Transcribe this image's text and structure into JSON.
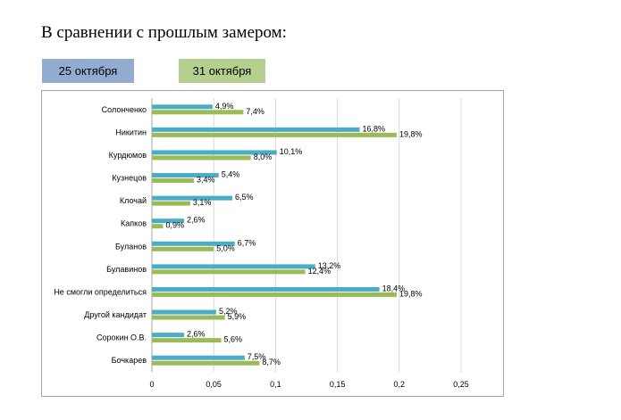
{
  "heading": "В сравнении с прошлым замером:",
  "legend": {
    "first": "25 октября",
    "second": "31 октября"
  },
  "colors": {
    "first": "#4bacc6",
    "second": "#9bbb59",
    "legend_first_bg": "#92acd0",
    "legend_second_bg": "#b5cf8e",
    "grid": "#d9d9d9"
  },
  "chart_data": {
    "type": "bar",
    "orientation": "horizontal",
    "categories": [
      "Солонченко",
      "Никитин",
      "Курдюмов",
      "Кузнецов",
      "Клочай",
      "Капков",
      "Буланов",
      "Булавинов",
      "Не смогли определиться",
      "Другой кандидат",
      "Сорокин О.В.",
      "Бочкарев"
    ],
    "series": [
      {
        "name": "25 октября",
        "values": [
          0.049,
          0.168,
          0.101,
          0.054,
          0.065,
          0.026,
          0.067,
          0.132,
          0.184,
          0.052,
          0.026,
          0.075
        ],
        "labels": [
          "4,9%",
          "16,8%",
          "10,1%",
          "5,4%",
          "6,5%",
          "2,6%",
          "6,7%",
          "13,2%",
          "18,4%",
          "5,2%",
          "2,6%",
          "7,5%"
        ]
      },
      {
        "name": "31 октября",
        "values": [
          0.074,
          0.198,
          0.08,
          0.034,
          0.031,
          0.009,
          0.05,
          0.124,
          0.198,
          0.059,
          0.056,
          0.087
        ],
        "labels": [
          "7,4%",
          "19,8%",
          "8,0%",
          "3,4%",
          "3,1%",
          "0,9%",
          "5,0%",
          "12,4%",
          "19,8%",
          "5,9%",
          "5,6%",
          "8,7%"
        ]
      }
    ],
    "xlim": [
      0,
      0.25
    ],
    "xticks": [
      0,
      0.05,
      0.1,
      0.15,
      0.2,
      0.25
    ],
    "xtick_labels": [
      "0",
      "0,05",
      "0,1",
      "0,15",
      "0,2",
      "0,25"
    ],
    "grid": true
  }
}
